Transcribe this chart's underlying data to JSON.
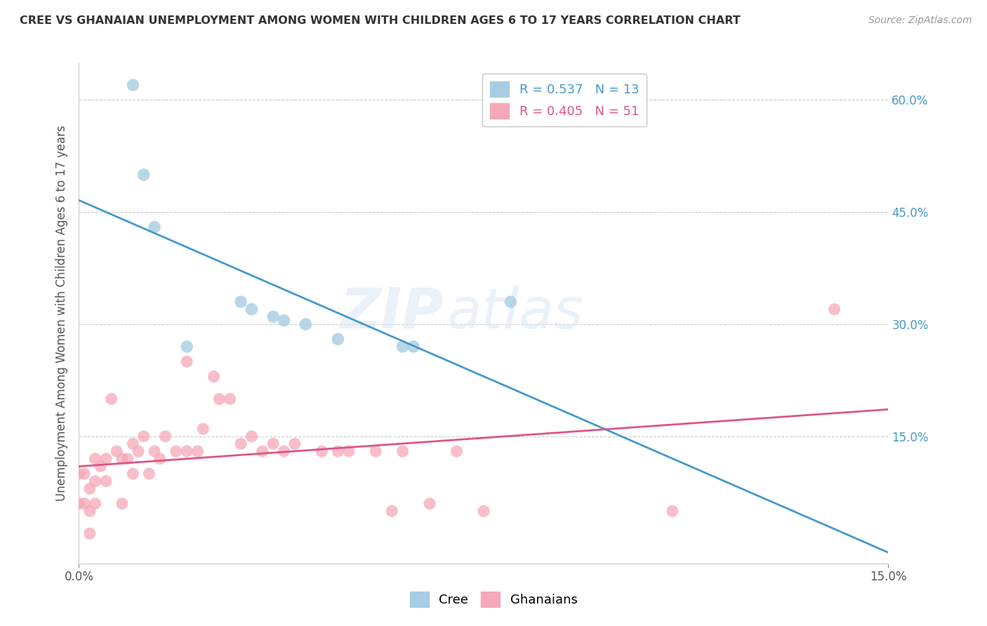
{
  "title": "CREE VS GHANAIAN UNEMPLOYMENT AMONG WOMEN WITH CHILDREN AGES 6 TO 17 YEARS CORRELATION CHART",
  "source": "Source: ZipAtlas.com",
  "ylabel": "Unemployment Among Women with Children Ages 6 to 17 years",
  "legend_cree_r": "R = 0.537",
  "legend_cree_n": "N = 13",
  "legend_ghana_r": "R = 0.405",
  "legend_ghana_n": "N = 51",
  "cree_color": "#a8cce4",
  "ghana_color": "#f5a8b8",
  "cree_line_color": "#4499cc",
  "ghana_line_color": "#dd5588",
  "watermark_zip": "ZIP",
  "watermark_atlas": "atlas",
  "cree_scatter_x": [
    0.01,
    0.012,
    0.014,
    0.02,
    0.03,
    0.032,
    0.036,
    0.038,
    0.042,
    0.048,
    0.06,
    0.062,
    0.08
  ],
  "cree_scatter_y": [
    0.62,
    0.5,
    0.43,
    0.27,
    0.33,
    0.32,
    0.31,
    0.305,
    0.3,
    0.28,
    0.27,
    0.27,
    0.33
  ],
  "ghana_scatter_x": [
    0.0,
    0.0,
    0.001,
    0.001,
    0.002,
    0.002,
    0.002,
    0.003,
    0.003,
    0.003,
    0.004,
    0.005,
    0.005,
    0.006,
    0.007,
    0.008,
    0.008,
    0.009,
    0.01,
    0.01,
    0.011,
    0.012,
    0.013,
    0.014,
    0.015,
    0.016,
    0.018,
    0.02,
    0.02,
    0.022,
    0.023,
    0.025,
    0.026,
    0.028,
    0.03,
    0.032,
    0.034,
    0.036,
    0.038,
    0.04,
    0.045,
    0.048,
    0.05,
    0.055,
    0.058,
    0.06,
    0.065,
    0.07,
    0.075,
    0.11,
    0.14
  ],
  "ghana_scatter_y": [
    0.1,
    0.06,
    0.1,
    0.06,
    0.08,
    0.05,
    0.02,
    0.12,
    0.09,
    0.06,
    0.11,
    0.12,
    0.09,
    0.2,
    0.13,
    0.12,
    0.06,
    0.12,
    0.14,
    0.1,
    0.13,
    0.15,
    0.1,
    0.13,
    0.12,
    0.15,
    0.13,
    0.25,
    0.13,
    0.13,
    0.16,
    0.23,
    0.2,
    0.2,
    0.14,
    0.15,
    0.13,
    0.14,
    0.13,
    0.14,
    0.13,
    0.13,
    0.13,
    0.13,
    0.05,
    0.13,
    0.06,
    0.13,
    0.05,
    0.05,
    0.32
  ],
  "cree_line_x": [
    0.0,
    0.15
  ],
  "ghana_line_x": [
    0.0,
    0.15
  ],
  "xlim": [
    0.0,
    0.15
  ],
  "ylim": [
    -0.02,
    0.65
  ],
  "yticks": [
    0.0,
    0.15,
    0.3,
    0.45,
    0.6
  ],
  "xticks": [
    0.0,
    0.15
  ],
  "figsize": [
    14.06,
    8.92
  ],
  "dpi": 100
}
